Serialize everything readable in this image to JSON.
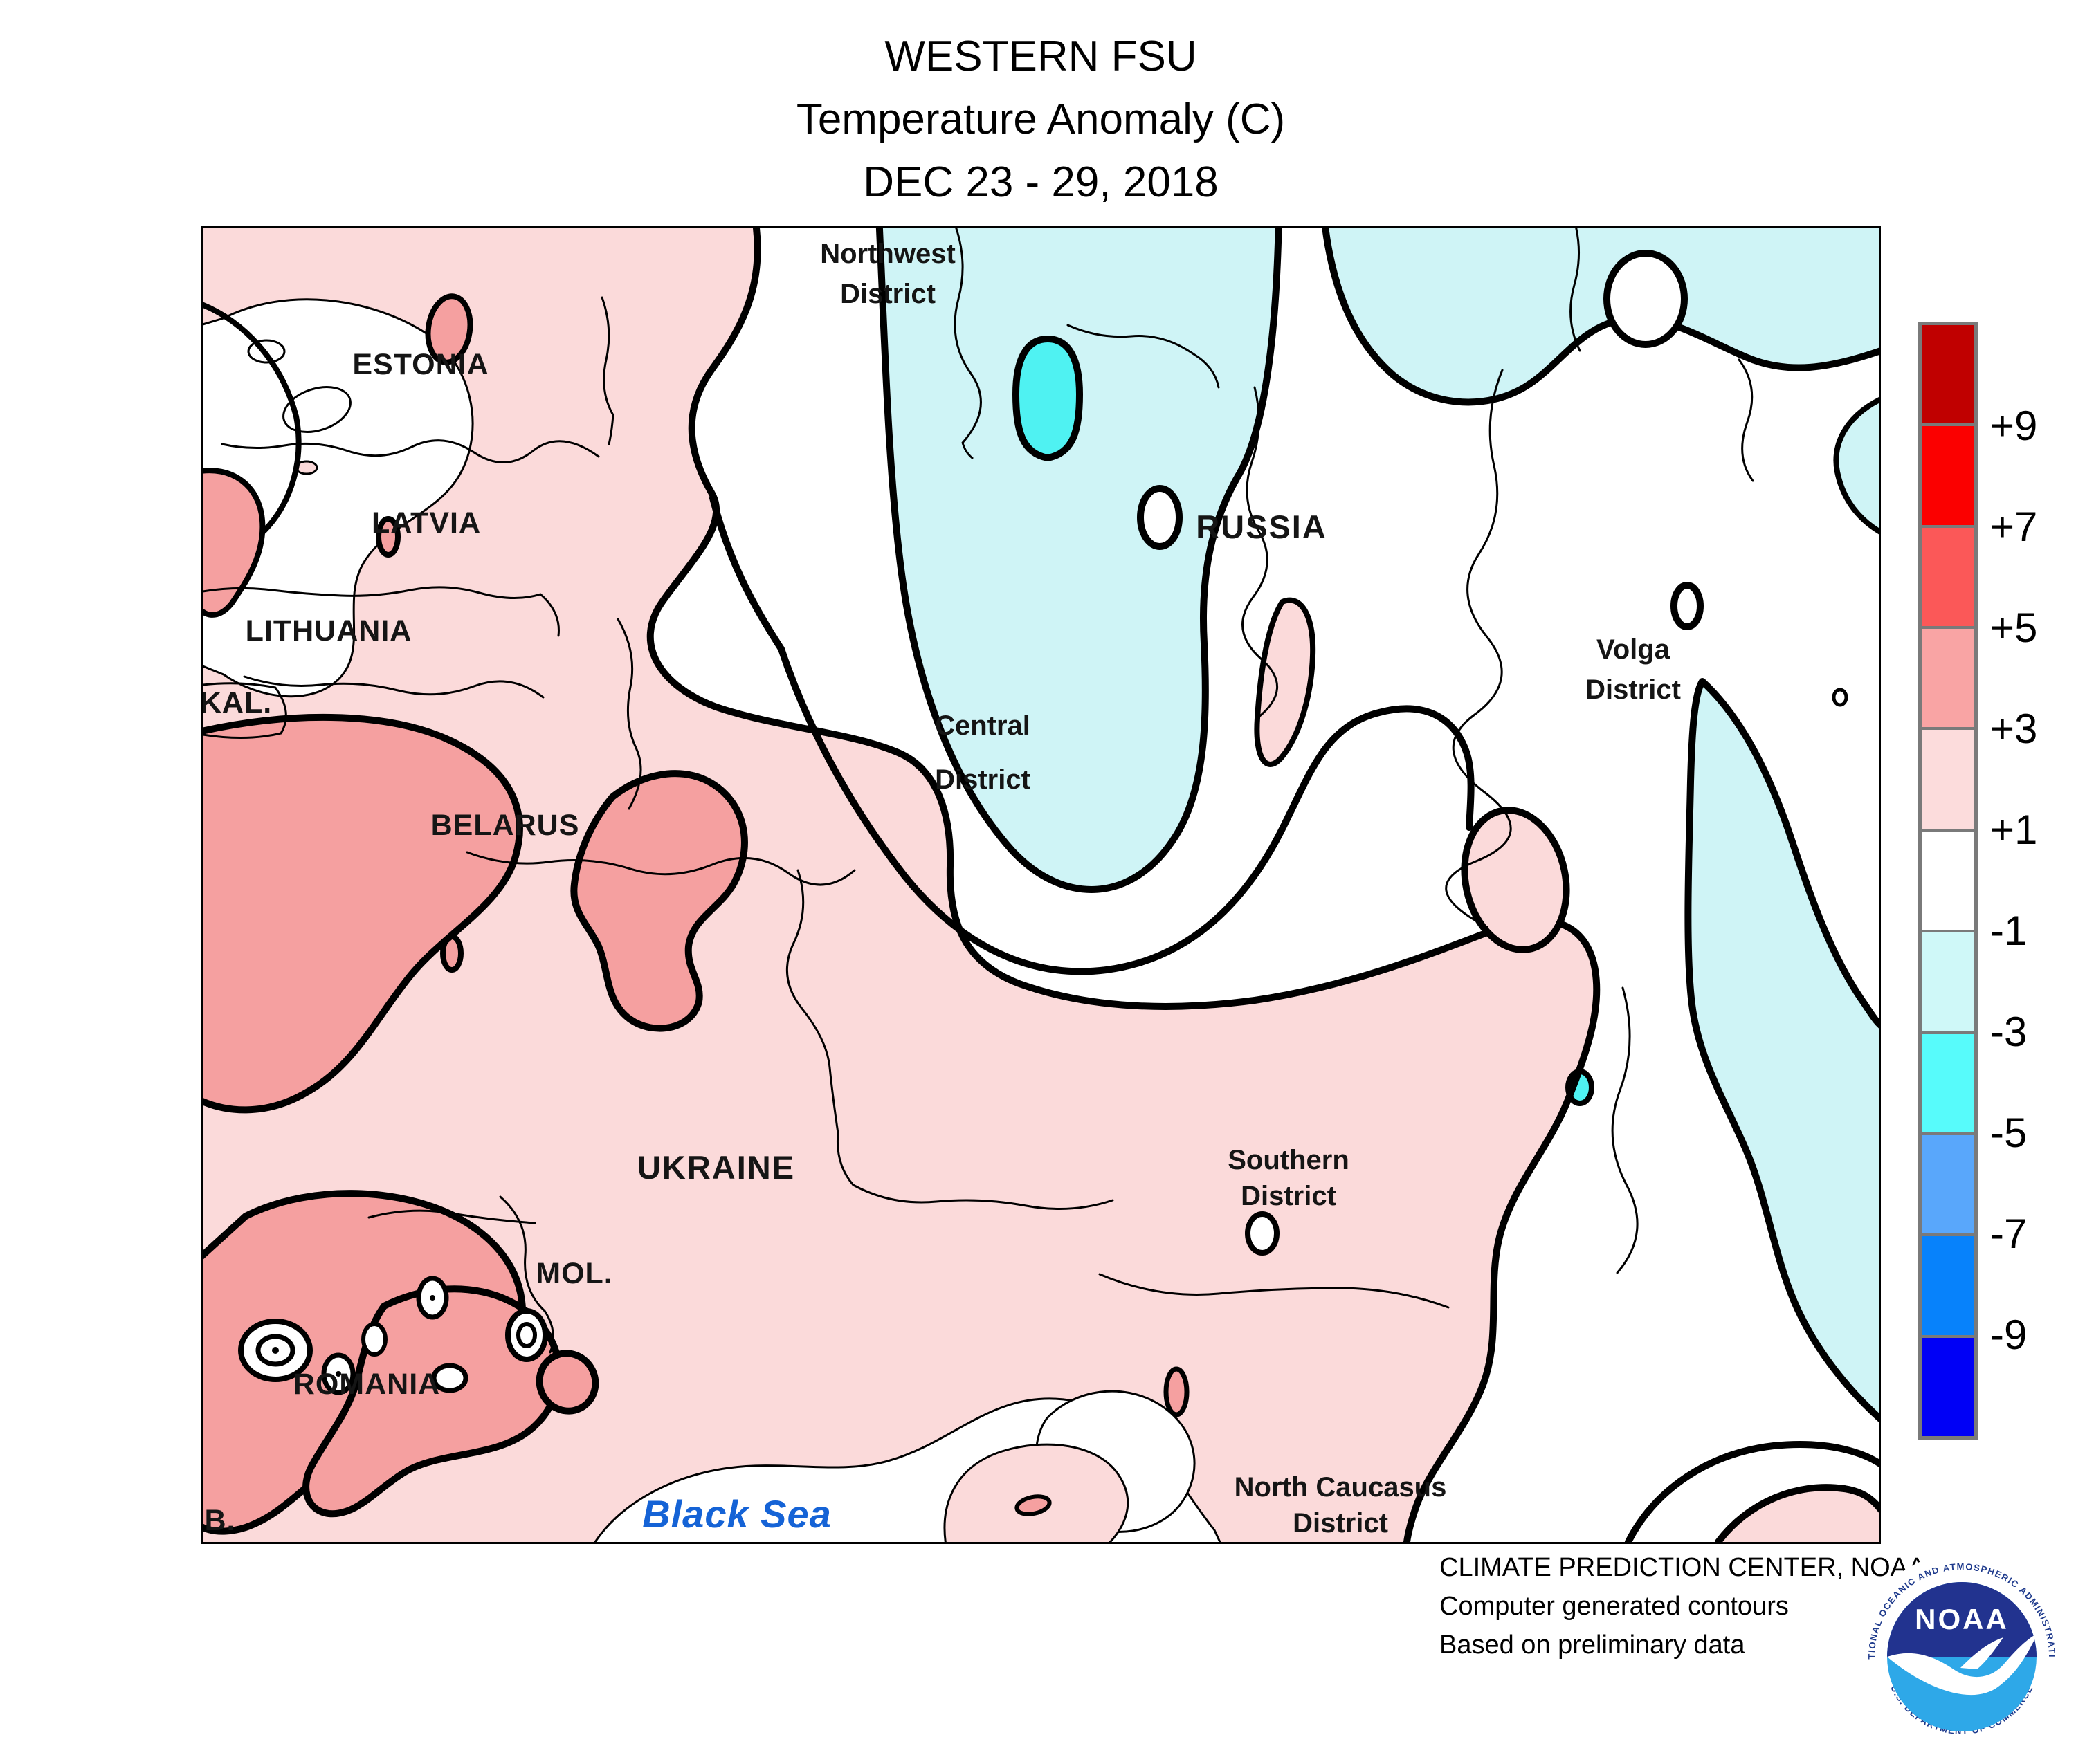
{
  "palette": {
    "pink": "#FBDADA",
    "salmon": "#F5A0A0",
    "cyan": "#CFF4F6",
    "bcyan": "#4FF2F2",
    "sea-label": "#1563D6"
  },
  "title": {
    "line1": "WESTERN FSU",
    "line2": "Temperature Anomaly (C)",
    "line3": "DEC 23 - 29, 2018"
  },
  "legend": {
    "labels": [
      "+9",
      "+7",
      "+5",
      "+3",
      "+1",
      "-1",
      "-3",
      "-5",
      "-7",
      "-9"
    ],
    "colors": [
      "#c00000",
      "#fb0000",
      "#fb5858",
      "#f9a4a4",
      "#fcdcdc",
      "#ffffff",
      "#cff8f8",
      "#57fbfb",
      "#59a7fb",
      "#0782fb",
      "#0000f6"
    ]
  },
  "map_labels": {
    "northwest": {
      "line1": "Northwest",
      "line2": "District"
    },
    "estonia": "ESTONIA",
    "latvia": "LATVIA",
    "lithuania": "LITHUANIA",
    "kal": "KAL.",
    "belarus": "BELARUS",
    "russia": "RUSSIA",
    "volga": {
      "line1": "Volga",
      "line2": "District"
    },
    "central": {
      "line1": "Central",
      "line2": "District"
    },
    "ukraine": "UKRAINE",
    "mol": "MOL.",
    "romania": "ROMANIA",
    "southern": {
      "line1": "Southern",
      "line2": "District"
    },
    "north_caucasus": {
      "line1": "North Caucasus",
      "line2": "District"
    },
    "b_abbrev": "B.",
    "black_sea": "Black Sea"
  },
  "attribution": {
    "line1": "CLIMATE PREDICTION CENTER, NOAA",
    "line2": "Computer generated contours",
    "line3": "Based on preliminary data"
  },
  "logo": {
    "word": "NOAA",
    "ring_top": "NATIONAL OCEANIC AND ATMOSPHERIC ADMINISTRATION",
    "ring_bottom": "U.S. DEPARTMENT OF COMMERCE"
  }
}
